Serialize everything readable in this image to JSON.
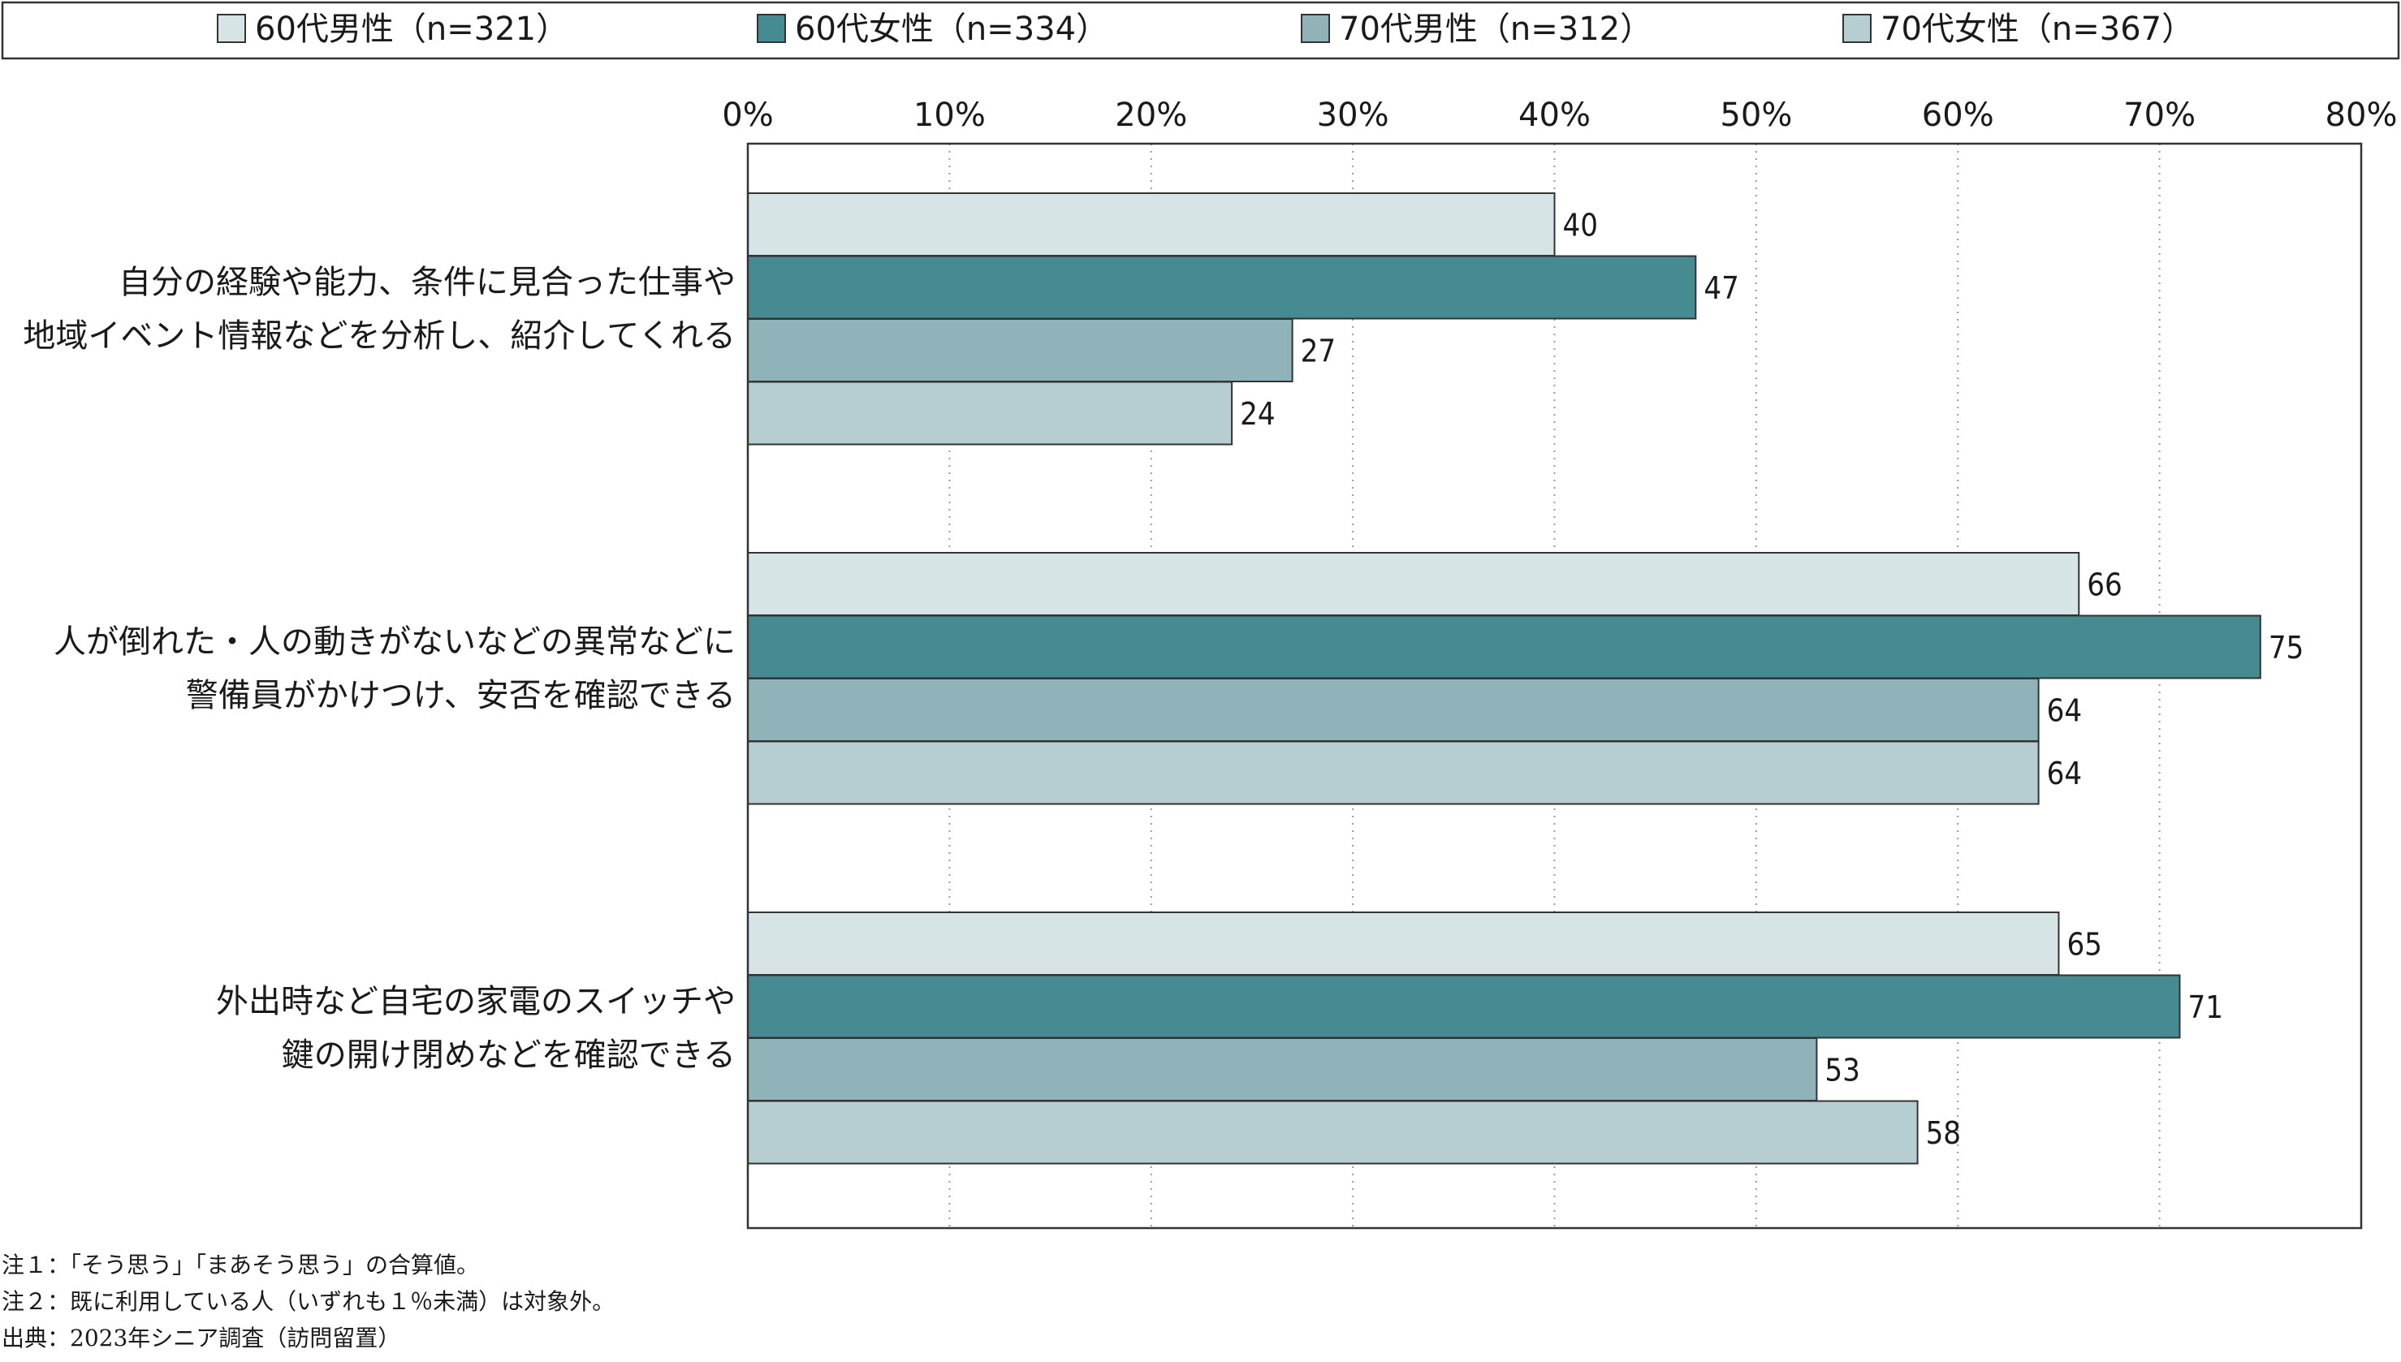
{
  "colors": {
    "series": [
      "#d7e4e5",
      "#468a92",
      "#8fb3b8",
      "#b6cdd1"
    ],
    "border": "#333333",
    "grid": "#9a9a9a",
    "text": "#1a1a1a"
  },
  "notes": [
    "注１：「そう思う」「まあそう思う」の合算値。",
    "注２：既に利用している人（いずれも１％未満）は対象外。",
    "出典：2023年シニア調査（訪問留置）"
  ],
  "chart_data": {
    "type": "bar",
    "orientation": "horizontal",
    "title": "",
    "xlabel": "",
    "ylabel": "",
    "xlim": [
      0,
      80
    ],
    "x_ticks": [
      0,
      10,
      20,
      30,
      40,
      50,
      60,
      70,
      80
    ],
    "x_tick_labels": [
      "0%",
      "10%",
      "20%",
      "30%",
      "40%",
      "50%",
      "60%",
      "70%",
      "80%"
    ],
    "grid": "vertical dotted",
    "legend_position": "top",
    "categories": [
      [
        "自分の経験や能力、条件に見合った仕事や",
        "地域イベント情報などを分析し、紹介してくれる"
      ],
      [
        "人が倒れた・人の動きがないなどの異常などに",
        "警備員がかけつけ、安否を確認できる"
      ],
      [
        "外出時など自宅の家電のスイッチや",
        "鍵の開け閉めなどを確認できる"
      ]
    ],
    "series": [
      {
        "name": "60代男性（n=321）",
        "values": [
          40,
          66,
          65
        ]
      },
      {
        "name": "60代女性（n=334）",
        "values": [
          47,
          75,
          71
        ]
      },
      {
        "name": "70代男性（n=312）",
        "values": [
          27,
          64,
          53
        ]
      },
      {
        "name": "70代女性（n=367）",
        "values": [
          24,
          64,
          58
        ]
      }
    ]
  }
}
